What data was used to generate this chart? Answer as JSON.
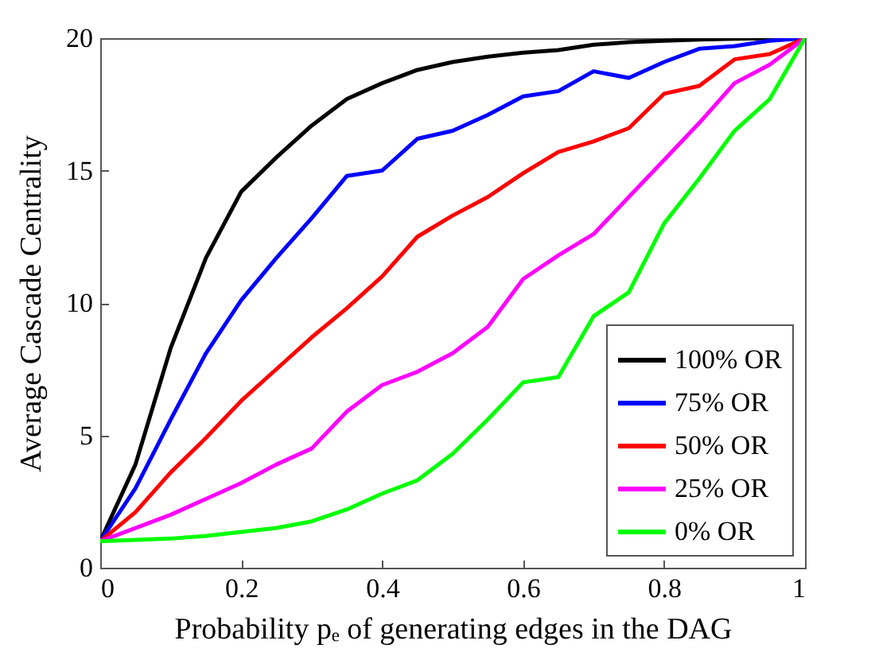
{
  "chart_data": {
    "type": "line",
    "xlabel": "Probability pₑ of generating edges in the DAG",
    "ylabel": "Average Cascade Centrality",
    "x": [
      0,
      0.05,
      0.1,
      0.15,
      0.2,
      0.25,
      0.3,
      0.35,
      0.4,
      0.45,
      0.5,
      0.55,
      0.6,
      0.65,
      0.7,
      0.75,
      0.8,
      0.85,
      0.9,
      0.95,
      1
    ],
    "series": [
      {
        "name": "100% OR",
        "color": "#000000",
        "values": [
          1,
          3.9,
          8.3,
          11.7,
          14.2,
          15.5,
          16.7,
          17.7,
          18.3,
          18.8,
          19.1,
          19.3,
          19.45,
          19.55,
          19.75,
          19.85,
          19.9,
          19.95,
          19.98,
          20,
          20
        ]
      },
      {
        "name": "75% OR",
        "color": "#0000ff",
        "values": [
          1,
          3.0,
          5.6,
          8.1,
          10.1,
          11.7,
          13.2,
          14.8,
          15.0,
          16.2,
          16.5,
          17.1,
          17.8,
          18.0,
          18.75,
          18.5,
          19.1,
          19.6,
          19.7,
          19.9,
          20
        ]
      },
      {
        "name": "50% OR",
        "color": "#ff0000",
        "values": [
          1,
          2.1,
          3.6,
          4.9,
          6.3,
          7.5,
          8.7,
          9.8,
          11.0,
          12.5,
          13.3,
          14.0,
          14.9,
          15.7,
          16.1,
          16.6,
          17.9,
          18.2,
          19.2,
          19.4,
          20
        ]
      },
      {
        "name": "25% OR",
        "color": "#ff00ff",
        "values": [
          1,
          1.5,
          2.0,
          2.6,
          3.2,
          3.9,
          4.5,
          5.9,
          6.9,
          7.4,
          8.1,
          9.1,
          10.9,
          11.8,
          12.6,
          14.0,
          15.4,
          16.8,
          18.3,
          19.0,
          20
        ]
      },
      {
        "name": "0% OR",
        "color": "#00ff00",
        "values": [
          1,
          1.05,
          1.1,
          1.2,
          1.35,
          1.5,
          1.75,
          2.2,
          2.8,
          3.3,
          4.3,
          5.6,
          7.0,
          7.2,
          9.5,
          10.4,
          13.0,
          14.7,
          16.5,
          17.7,
          20
        ]
      }
    ],
    "xlim": [
      0,
      1
    ],
    "ylim": [
      0,
      20
    ],
    "xticks": [
      0,
      0.2,
      0.4,
      0.6,
      0.8,
      1
    ],
    "yticks": [
      0,
      5,
      10,
      15,
      20
    ],
    "legend": "bottom right"
  }
}
